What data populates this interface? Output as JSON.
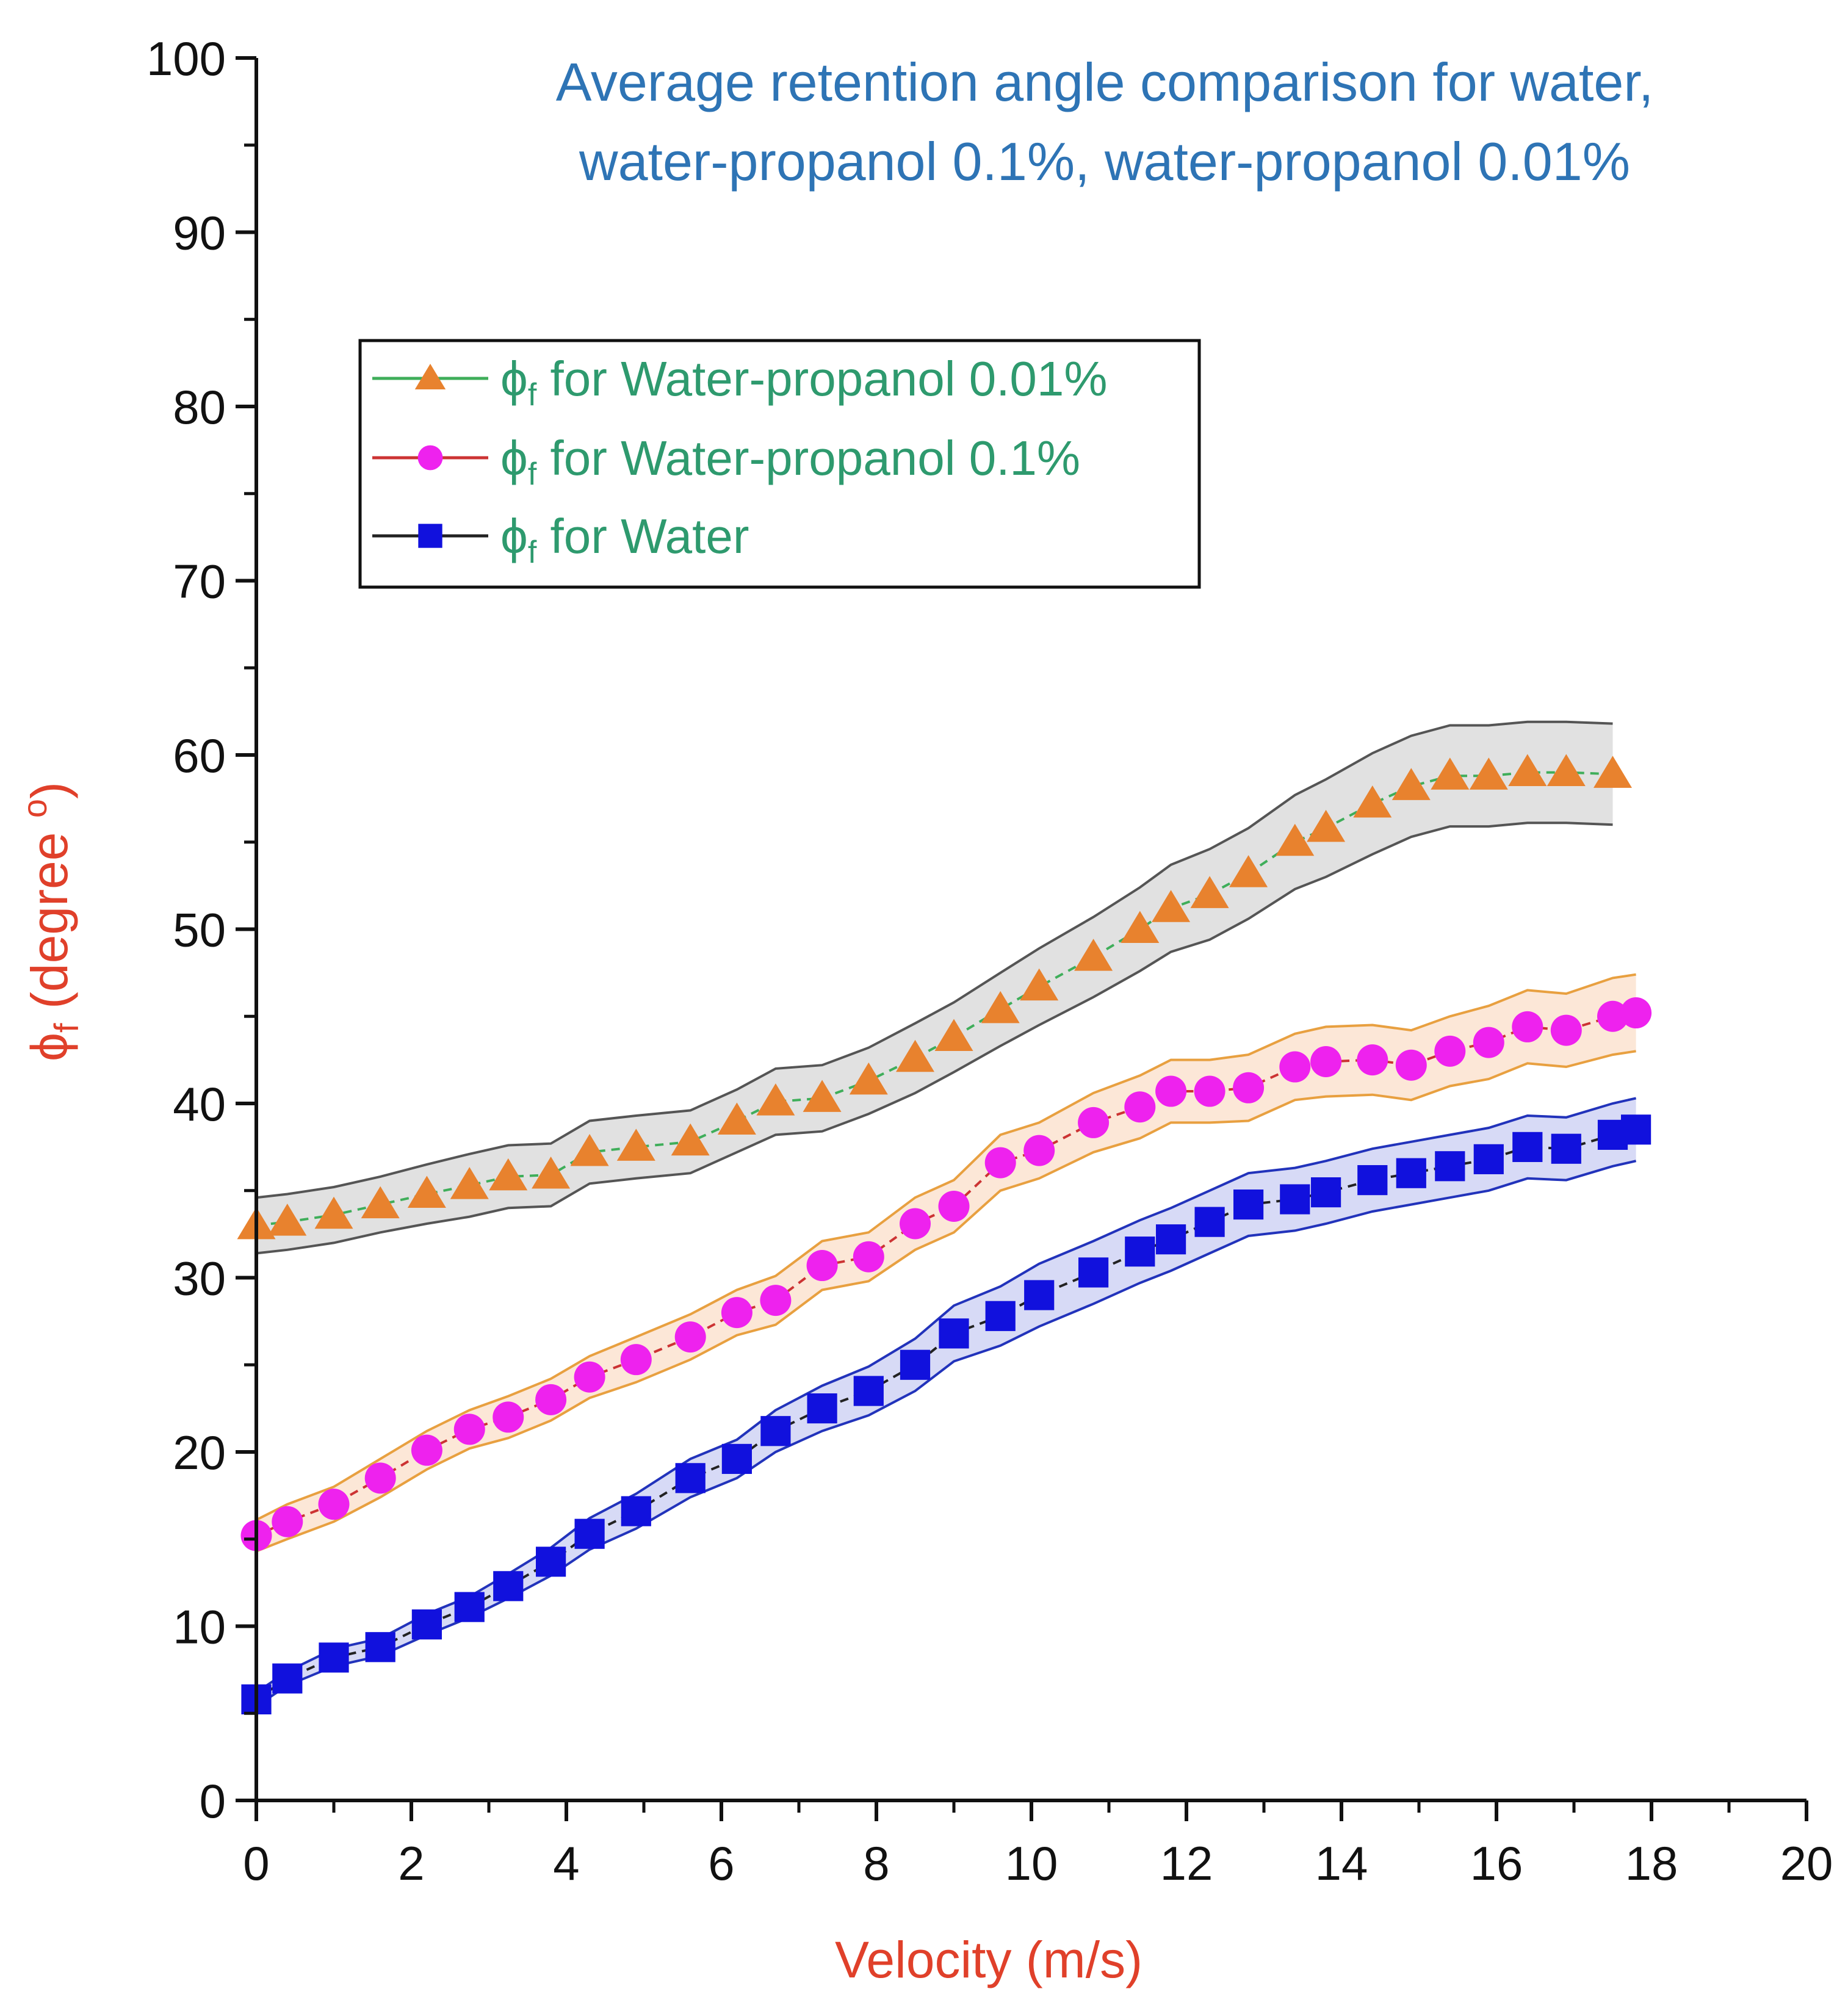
{
  "chart_data": {
    "type": "line",
    "title": [
      "Average retention angle comparison for water,",
      "water-propanol 0.1%, water-propanol 0.01%"
    ],
    "xlabel": "Velocity (m/s)",
    "ylabel": "ϕf (degree °)",
    "ylabel_parts": {
      "symbol": "ϕ",
      "subscript": "f",
      "rest": " (degree ",
      "sup": "o",
      "close": ")"
    },
    "xlim": [
      0,
      20
    ],
    "ylim": [
      0,
      100
    ],
    "x_ticks": [
      "0",
      "2",
      "4",
      "6",
      "8",
      "10",
      "12",
      "14",
      "16",
      "18",
      "20"
    ],
    "y_ticks": [
      "0",
      "10",
      "20",
      "30",
      "40",
      "50",
      "60",
      "70",
      "80",
      "90",
      "100"
    ],
    "legend_position": "top-left",
    "series": [
      {
        "name": "ϕf for Water-propanol 0.01%",
        "legend_parts": {
          "symbol": "ϕ",
          "subscript": "f",
          "rest": " for Water-propanol 0.01%"
        },
        "marker": "triangle",
        "marker_color": "#e8822e",
        "line_color": "#3fae5a",
        "band_fill": "#dcdcdc",
        "band_stroke": "#555555",
        "x": [
          0,
          0.4,
          1.0,
          1.6,
          2.2,
          2.75,
          3.25,
          3.8,
          4.3,
          4.9,
          5.6,
          6.2,
          6.7,
          7.3,
          7.9,
          8.5,
          9.0,
          9.6,
          10.1,
          10.8,
          11.4,
          11.8,
          12.3,
          12.8,
          13.4,
          13.8,
          14.4,
          14.9,
          15.4,
          15.9,
          16.4,
          16.9,
          17.5
        ],
        "y": [
          33.0,
          33.2,
          33.6,
          34.2,
          34.8,
          35.3,
          35.8,
          35.9,
          37.2,
          37.5,
          37.8,
          39.0,
          40.1,
          40.3,
          41.3,
          42.6,
          43.8,
          45.4,
          46.7,
          48.4,
          50.0,
          51.2,
          52.0,
          53.2,
          55.0,
          55.8,
          57.2,
          58.2,
          58.8,
          58.8,
          59.0,
          59.0,
          58.9
        ],
        "band_half_width": [
          1.6,
          1.6,
          1.6,
          1.6,
          1.7,
          1.8,
          1.8,
          1.8,
          1.8,
          1.8,
          1.8,
          1.8,
          1.9,
          1.9,
          1.9,
          2.0,
          2.0,
          2.1,
          2.2,
          2.3,
          2.4,
          2.5,
          2.6,
          2.6,
          2.7,
          2.8,
          2.9,
          2.9,
          2.9,
          2.9,
          2.9,
          2.9,
          2.9
        ]
      },
      {
        "name": "ϕf for Water-propanol 0.1%",
        "legend_parts": {
          "symbol": "ϕ",
          "subscript": "f",
          "rest": " for Water-propanol 0.1%"
        },
        "marker": "circle",
        "marker_color": "#ee22ee",
        "line_color": "#cc3333",
        "band_fill": "#fbe3d0",
        "band_stroke": "#e8a040",
        "x": [
          0,
          0.4,
          1.0,
          1.6,
          2.2,
          2.75,
          3.25,
          3.8,
          4.3,
          4.9,
          5.6,
          6.2,
          6.7,
          7.3,
          7.9,
          8.5,
          9.0,
          9.6,
          10.1,
          10.8,
          11.4,
          11.8,
          12.3,
          12.8,
          13.4,
          13.8,
          14.4,
          14.9,
          15.4,
          15.9,
          16.4,
          16.9,
          17.5,
          17.8
        ],
        "y": [
          15.2,
          16.0,
          17.0,
          18.5,
          20.1,
          21.3,
          22.0,
          23.0,
          24.3,
          25.3,
          26.6,
          28.0,
          28.7,
          30.7,
          31.2,
          33.1,
          34.1,
          36.6,
          37.3,
          38.9,
          39.8,
          40.7,
          40.7,
          40.9,
          42.1,
          42.4,
          42.5,
          42.2,
          43.0,
          43.5,
          44.4,
          44.2,
          45.0,
          45.2
        ],
        "band_half_width": [
          0.9,
          1.0,
          1.0,
          1.1,
          1.1,
          1.1,
          1.2,
          1.2,
          1.2,
          1.3,
          1.3,
          1.3,
          1.4,
          1.4,
          1.4,
          1.5,
          1.5,
          1.6,
          1.6,
          1.7,
          1.8,
          1.8,
          1.8,
          1.9,
          1.9,
          2.0,
          2.0,
          2.0,
          2.0,
          2.1,
          2.1,
          2.1,
          2.2,
          2.2
        ]
      },
      {
        "name": "ϕf for Water",
        "legend_parts": {
          "symbol": "ϕ",
          "subscript": "f",
          "rest": " for Water"
        },
        "marker": "square",
        "marker_color": "#1111dd",
        "line_color": "#222222",
        "band_fill": "#d0d4f4",
        "band_stroke": "#2233bb",
        "x": [
          0,
          0.4,
          1.0,
          1.6,
          2.2,
          2.75,
          3.25,
          3.8,
          4.3,
          4.9,
          5.6,
          6.2,
          6.7,
          7.3,
          7.9,
          8.5,
          9.0,
          9.6,
          10.1,
          10.8,
          11.4,
          11.8,
          12.3,
          12.8,
          13.4,
          13.8,
          14.4,
          14.9,
          15.4,
          15.9,
          16.4,
          16.9,
          17.5,
          17.8
        ],
        "y": [
          5.8,
          7.0,
          8.2,
          8.8,
          10.1,
          11.1,
          12.3,
          13.7,
          15.3,
          16.6,
          18.5,
          19.6,
          21.2,
          22.5,
          23.5,
          25.0,
          26.8,
          27.8,
          29.0,
          30.3,
          31.5,
          32.2,
          33.2,
          34.2,
          34.5,
          34.9,
          35.6,
          36.0,
          36.4,
          36.8,
          37.5,
          37.4,
          38.2,
          38.5
        ],
        "band_half_width": [
          0.4,
          0.4,
          0.5,
          0.5,
          0.6,
          0.6,
          0.7,
          0.8,
          0.9,
          1.0,
          1.1,
          1.1,
          1.2,
          1.3,
          1.4,
          1.5,
          1.6,
          1.7,
          1.8,
          1.8,
          1.8,
          1.8,
          1.8,
          1.8,
          1.8,
          1.8,
          1.8,
          1.8,
          1.8,
          1.8,
          1.8,
          1.8,
          1.8,
          1.8
        ]
      }
    ]
  }
}
